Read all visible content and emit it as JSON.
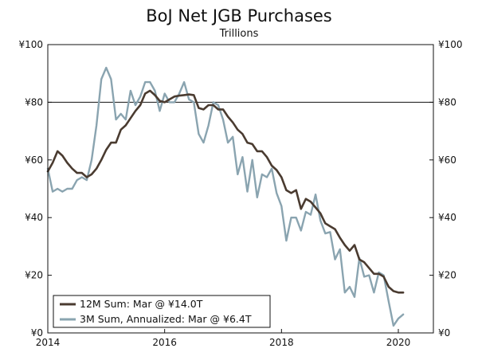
{
  "chart_data": {
    "type": "line",
    "title": "BoJ Net JGB Purchases",
    "subtitle": "Trillions",
    "xlabel": "",
    "ylabel": "",
    "xlim": [
      2014,
      2020.6
    ],
    "ylim": [
      0,
      100
    ],
    "x_ticks": [
      2014,
      2016,
      2018,
      2020
    ],
    "x_tick_labels": [
      "2014",
      "2016",
      "2018",
      "2020"
    ],
    "y_ticks": [
      0,
      20,
      40,
      60,
      80,
      100
    ],
    "y_tick_labels": [
      "¥0",
      "¥20",
      "¥40",
      "¥60",
      "¥80",
      "¥100"
    ],
    "right_y_tick_labels": [
      "¥0",
      "¥20",
      "¥40",
      "¥60",
      "¥80",
      "¥100"
    ],
    "reference_line": 80,
    "legend_position": "bottom-left",
    "start": 2014.0,
    "step": 0.08333,
    "series": [
      {
        "name": "12M Sum: Mar @ ¥14.0T",
        "color": "#4a3b30",
        "values": [
          56,
          59,
          63,
          61.5,
          59,
          57,
          55.5,
          55.5,
          54,
          55,
          57,
          60,
          63.5,
          66,
          66,
          70.5,
          72,
          74.5,
          77,
          79,
          83,
          84,
          82.5,
          80.5,
          80,
          81,
          82,
          82.3,
          82.5,
          82.7,
          82.5,
          78,
          77.5,
          79,
          79,
          77.5,
          77.5,
          75,
          73,
          70.5,
          69,
          66,
          65.5,
          63,
          63,
          61,
          58,
          56.5,
          54,
          49.5,
          48.5,
          49.5,
          43,
          46.5,
          45.5,
          43.5,
          41.5,
          38,
          37,
          36,
          33,
          30.5,
          28.5,
          30.5,
          25.5,
          24.5,
          22.5,
          20.5,
          20.5,
          19.5,
          16,
          14.5,
          14,
          14
        ]
      },
      {
        "name": "3M Sum, Annualized: Mar @ ¥6.4T",
        "color": "#8aa4b0",
        "values": [
          57,
          49,
          50,
          49,
          50,
          50,
          53,
          54,
          53,
          60,
          72,
          88,
          92,
          88,
          74,
          76,
          74,
          84,
          79,
          82,
          87,
          87,
          84,
          77,
          83,
          80,
          80,
          83,
          87,
          81,
          80,
          69,
          66,
          72,
          80,
          79,
          74,
          66,
          68,
          55,
          61,
          49,
          60,
          47,
          55,
          54,
          57,
          48.5,
          44,
          32,
          40,
          40,
          35.5,
          42,
          41,
          48,
          39,
          34.5,
          35,
          25.5,
          29,
          14,
          16,
          12.5,
          26,
          19.5,
          20,
          14,
          21,
          20,
          11,
          2.5,
          5,
          6.4
        ]
      }
    ]
  }
}
